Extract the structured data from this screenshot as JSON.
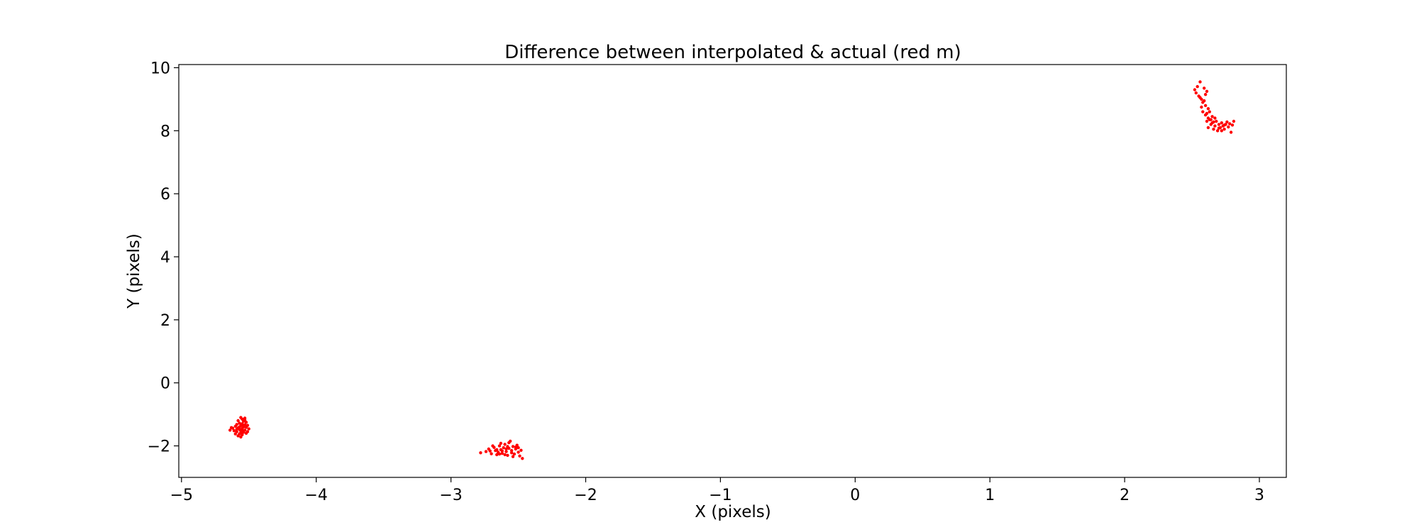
{
  "chart_data": {
    "type": "scatter",
    "title": "Difference between interpolated & actual (red m)",
    "xlabel": "X (pixels)",
    "ylabel": "Y (pixels)",
    "xlim": [
      -5.02,
      3.2
    ],
    "ylim": [
      -3.0,
      10.1
    ],
    "xticks": [
      -5,
      -4,
      -3,
      -2,
      -1,
      0,
      1,
      2,
      3
    ],
    "xtick_labels": [
      "−5",
      "−4",
      "−3",
      "−2",
      "−1",
      "0",
      "1",
      "2",
      "3"
    ],
    "yticks": [
      -2,
      0,
      2,
      4,
      6,
      8,
      10
    ],
    "ytick_labels": [
      "−2",
      "0",
      "2",
      "4",
      "6",
      "8",
      "10"
    ],
    "grid": false,
    "colors": {
      "marker": "#ff0000",
      "axes": "#000000"
    },
    "series": [
      {
        "marker": "dot",
        "points": [
          [
            -4.56,
            -1.1
          ],
          [
            -4.55,
            -1.15
          ],
          [
            -4.53,
            -1.12
          ],
          [
            -4.58,
            -1.2
          ],
          [
            -4.54,
            -1.22
          ],
          [
            -4.52,
            -1.25
          ],
          [
            -4.57,
            -1.28
          ],
          [
            -4.55,
            -1.3
          ],
          [
            -4.59,
            -1.32
          ],
          [
            -4.53,
            -1.33
          ],
          [
            -4.51,
            -1.35
          ],
          [
            -4.56,
            -1.36
          ],
          [
            -4.6,
            -1.38
          ],
          [
            -4.54,
            -1.4
          ],
          [
            -4.52,
            -1.41
          ],
          [
            -4.58,
            -1.43
          ],
          [
            -4.62,
            -1.44
          ],
          [
            -4.55,
            -1.45
          ],
          [
            -4.5,
            -1.46
          ],
          [
            -4.57,
            -1.48
          ],
          [
            -4.53,
            -1.5
          ],
          [
            -4.61,
            -1.52
          ],
          [
            -4.56,
            -1.53
          ],
          [
            -4.59,
            -1.55
          ],
          [
            -4.54,
            -1.57
          ],
          [
            -4.52,
            -1.6
          ],
          [
            -4.57,
            -1.62
          ],
          [
            -4.55,
            -1.65
          ],
          [
            -4.58,
            -1.68
          ],
          [
            -4.56,
            -1.72
          ],
          [
            -4.64,
            -1.5
          ],
          [
            -4.63,
            -1.42
          ],
          [
            -4.51,
            -1.55
          ],
          [
            -4.6,
            -1.62
          ],
          [
            -4.53,
            -1.18
          ],
          [
            -4.57,
            -1.4
          ],
          [
            -4.55,
            -1.5
          ],
          [
            -4.59,
            -1.47
          ],
          [
            -4.54,
            -1.35
          ],
          [
            -4.56,
            -1.58
          ],
          [
            -2.78,
            -2.22
          ],
          [
            -2.74,
            -2.18
          ],
          [
            -2.72,
            -2.1
          ],
          [
            -2.7,
            -2.25
          ],
          [
            -2.68,
            -2.05
          ],
          [
            -2.67,
            -2.15
          ],
          [
            -2.66,
            -2.28
          ],
          [
            -2.65,
            -2.2
          ],
          [
            -2.64,
            -2.0
          ],
          [
            -2.63,
            -2.12
          ],
          [
            -2.62,
            -2.24
          ],
          [
            -2.61,
            -2.06
          ],
          [
            -2.6,
            -1.95
          ],
          [
            -2.59,
            -2.18
          ],
          [
            -2.58,
            -2.3
          ],
          [
            -2.57,
            -2.08
          ],
          [
            -2.56,
            -1.85
          ],
          [
            -2.55,
            -2.15
          ],
          [
            -2.54,
            -2.02
          ],
          [
            -2.53,
            -2.26
          ],
          [
            -2.52,
            -2.1
          ],
          [
            -2.51,
            -1.98
          ],
          [
            -2.5,
            -2.2
          ],
          [
            -2.49,
            -2.32
          ],
          [
            -2.48,
            -2.14
          ],
          [
            -2.47,
            -2.4
          ],
          [
            -2.69,
            -2.0
          ],
          [
            -2.63,
            -1.92
          ],
          [
            -2.58,
            -2.02
          ],
          [
            -2.54,
            -2.34
          ],
          [
            -2.66,
            -2.12
          ],
          [
            -2.6,
            -2.28
          ],
          [
            -2.57,
            -1.9
          ],
          [
            -2.52,
            -2.04
          ],
          [
            -2.62,
            -2.16
          ],
          [
            -2.55,
            -2.22
          ],
          [
            -2.5,
            -2.06
          ],
          [
            -2.64,
            -2.26
          ],
          [
            -2.59,
            -2.1
          ],
          [
            -2.71,
            -2.16
          ],
          [
            2.52,
            9.3
          ],
          [
            2.54,
            9.4
          ],
          [
            2.56,
            9.55
          ],
          [
            2.53,
            9.2
          ],
          [
            2.55,
            9.1
          ],
          [
            2.57,
            9.0
          ],
          [
            2.58,
            8.9
          ],
          [
            2.59,
            9.35
          ],
          [
            2.6,
            8.8
          ],
          [
            2.61,
            9.25
          ],
          [
            2.62,
            8.7
          ],
          [
            2.58,
            8.6
          ],
          [
            2.6,
            8.5
          ],
          [
            2.62,
            8.4
          ],
          [
            2.61,
            8.3
          ],
          [
            2.63,
            8.35
          ],
          [
            2.64,
            8.2
          ],
          [
            2.62,
            8.1
          ],
          [
            2.65,
            8.25
          ],
          [
            2.66,
            8.05
          ],
          [
            2.67,
            8.15
          ],
          [
            2.68,
            8.3
          ],
          [
            2.69,
            8.0
          ],
          [
            2.7,
            8.2
          ],
          [
            2.71,
            8.1
          ],
          [
            2.72,
            8.25
          ],
          [
            2.73,
            8.15
          ],
          [
            2.74,
            8.05
          ],
          [
            2.75,
            8.2
          ],
          [
            2.76,
            8.28
          ],
          [
            2.77,
            8.12
          ],
          [
            2.78,
            8.22
          ],
          [
            2.79,
            7.95
          ],
          [
            2.8,
            8.18
          ],
          [
            2.81,
            8.3
          ],
          [
            2.59,
            8.95
          ],
          [
            2.61,
            8.55
          ],
          [
            2.57,
            8.75
          ],
          [
            2.65,
            8.45
          ],
          [
            2.63,
            8.6
          ],
          [
            2.56,
            9.05
          ],
          [
            2.6,
            9.15
          ],
          [
            2.64,
            8.35
          ],
          [
            2.66,
            8.28
          ],
          [
            2.7,
            8.08
          ],
          [
            2.74,
            8.18
          ],
          [
            2.67,
            8.4
          ],
          [
            2.72,
            8.0
          ]
        ]
      }
    ]
  }
}
